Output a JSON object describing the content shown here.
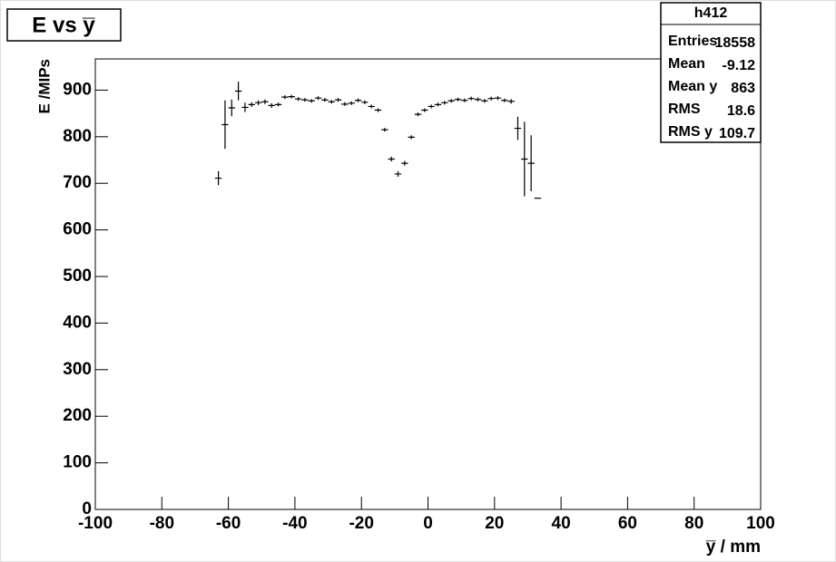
{
  "chart_data": {
    "type": "profile",
    "title": "E vs y̅",
    "x_label": "y̅ / mm",
    "y_label": "E /MIPs",
    "x": [
      -63,
      -61,
      -59,
      -57,
      -55,
      -53,
      -51,
      -49,
      -47,
      -45,
      -43,
      -41,
      -39,
      -37,
      -35,
      -33,
      -31,
      -29,
      -27,
      -25,
      -23,
      -21,
      -19,
      -17,
      -15,
      -13,
      -11,
      -9,
      -7,
      -5,
      -3,
      -1,
      1,
      3,
      5,
      7,
      9,
      11,
      13,
      15,
      17,
      19,
      21,
      23,
      25,
      27,
      29,
      31,
      33
    ],
    "values": [
      711,
      826,
      862,
      898,
      863,
      869,
      873,
      875,
      867,
      869,
      885,
      886,
      881,
      879,
      877,
      883,
      879,
      875,
      879,
      870,
      872,
      878,
      874,
      865,
      857,
      815,
      752,
      720,
      743,
      799,
      848,
      857,
      865,
      869,
      873,
      877,
      880,
      878,
      882,
      880,
      877,
      882,
      883,
      878,
      876,
      818,
      752,
      743,
      668
    ],
    "errors": [
      15,
      52,
      18,
      20,
      10,
      5,
      5,
      5,
      5,
      4,
      4,
      4,
      4,
      4,
      4,
      4,
      4,
      4,
      4,
      4,
      4,
      4,
      4,
      4,
      4,
      4,
      5,
      6,
      5,
      4,
      4,
      4,
      4,
      4,
      4,
      4,
      4,
      4,
      4,
      4,
      4,
      4,
      4,
      4,
      5,
      25,
      80,
      60,
      0
    ],
    "color": "#000000",
    "xlim": [
      -100,
      100
    ],
    "xticks": [
      -100,
      -80,
      -60,
      -40,
      -20,
      0,
      20,
      40,
      60,
      80,
      100
    ],
    "ylim": [
      0,
      967
    ],
    "yticks": [
      0,
      100,
      200,
      300,
      400,
      500,
      600,
      700,
      800,
      900
    ],
    "stats": {
      "title": "h412",
      "rows": [
        [
          "Entries",
          18558
        ],
        [
          "Mean",
          -9.12
        ],
        [
          "Mean y",
          863
        ],
        [
          "RMS",
          18.6
        ],
        [
          "RMS y",
          109.7
        ]
      ]
    }
  }
}
